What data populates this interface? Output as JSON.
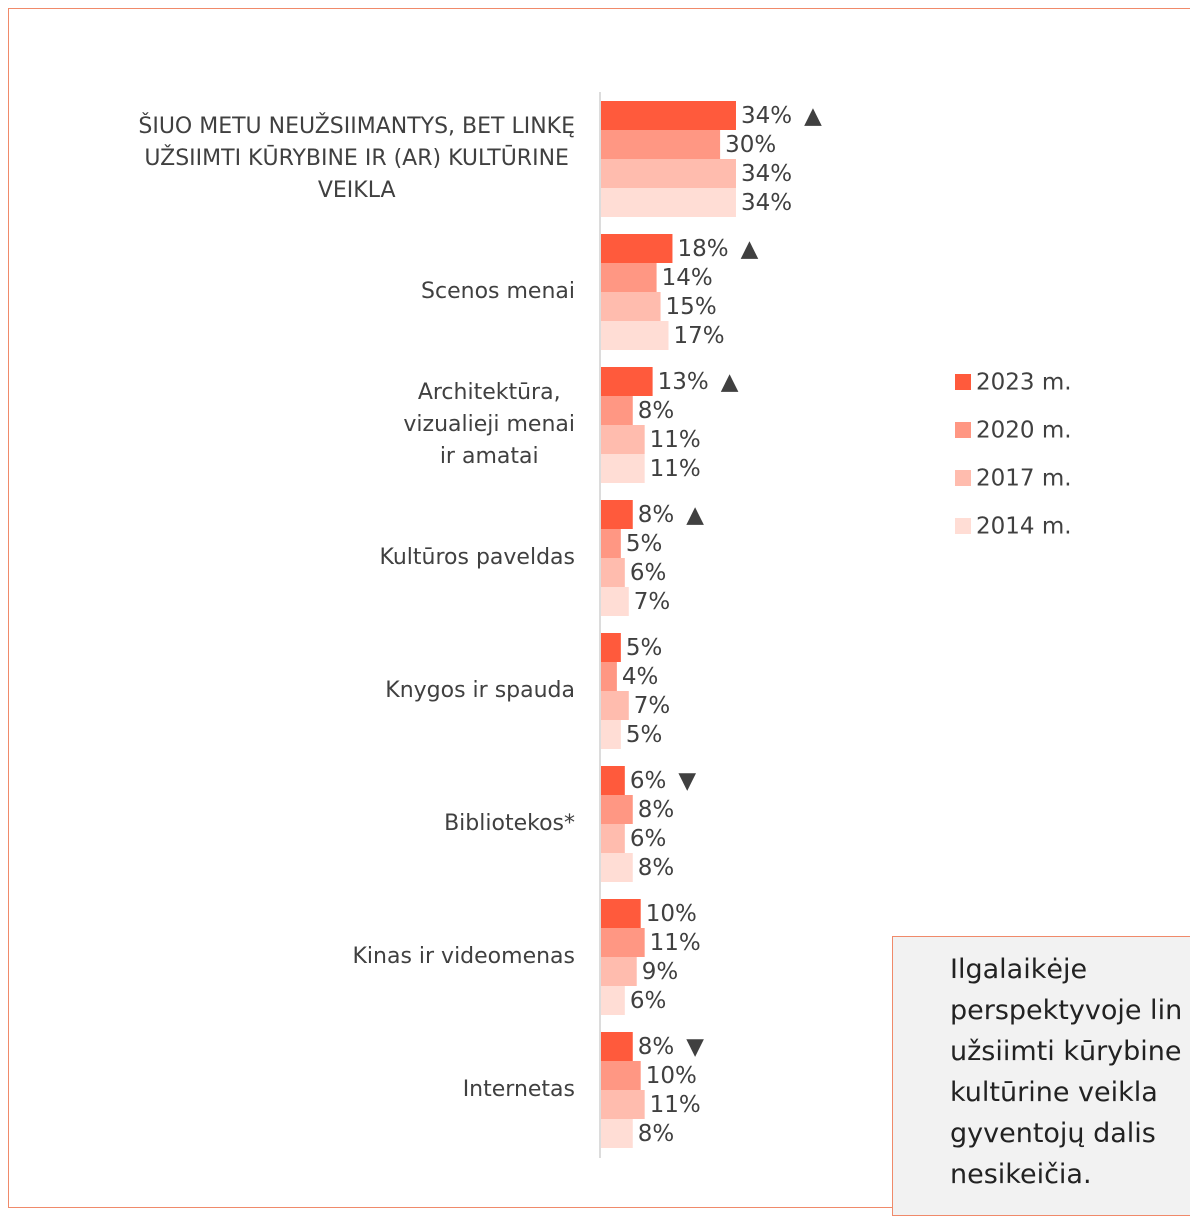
{
  "chart_data": {
    "type": "bar",
    "orientation": "horizontal",
    "categories": [
      "ŠIUO METU NEUŽSIIMANTYS, BET LINKĘ\nUŽSIIMTI KŪRYBINE IR (AR) KULTŪRINE\nVEIKLA",
      "Scenos menai",
      "Architektūra,\nvizualieji menai\nir amatai",
      "Kultūros paveldas",
      "Knygos ir spauda",
      "Bibliotekos*",
      "Kinas ir videomenas",
      "Internetas"
    ],
    "series": [
      {
        "name": "2023 m.",
        "color": "#ff5a3c",
        "values": [
          34,
          18,
          13,
          8,
          5,
          6,
          10,
          8
        ],
        "value_labels": [
          "34%",
          "18%",
          "13%",
          "8%",
          "5%",
          "6%",
          "10%",
          "8%"
        ]
      },
      {
        "name": "2020 m.",
        "color": "#ff9783",
        "values": [
          30,
          14,
          8,
          5,
          4,
          8,
          11,
          10
        ],
        "value_labels": [
          "30%",
          "14%",
          "8%",
          "5%",
          "4%",
          "8%",
          "11%",
          "10%"
        ]
      },
      {
        "name": "2017 m.",
        "color": "#ffbcae",
        "values": [
          34,
          15,
          11,
          6,
          7,
          6,
          9,
          11
        ],
        "value_labels": [
          "34%",
          "15%",
          "11%",
          "6%",
          "7%",
          "6%",
          "9%",
          "11%"
        ]
      },
      {
        "name": "2014 m.",
        "color": "#ffddd5",
        "values": [
          34,
          17,
          11,
          7,
          5,
          8,
          6,
          8
        ],
        "value_labels": [
          "34%",
          "17%",
          "11%",
          "7%",
          "5%",
          "8%",
          "6%",
          "8%"
        ]
      }
    ],
    "trend_markers": [
      "▲",
      "▲",
      "▲",
      "▲",
      null,
      "▼",
      null,
      "▼"
    ],
    "legend": "right"
  },
  "note": {
    "lines": [
      "Ilgalaikėje",
      "perspektyvoje lin",
      "užsiimti kūrybine",
      "kultūrine veikla",
      "gyventojų dalis",
      "nesikeičia."
    ]
  }
}
